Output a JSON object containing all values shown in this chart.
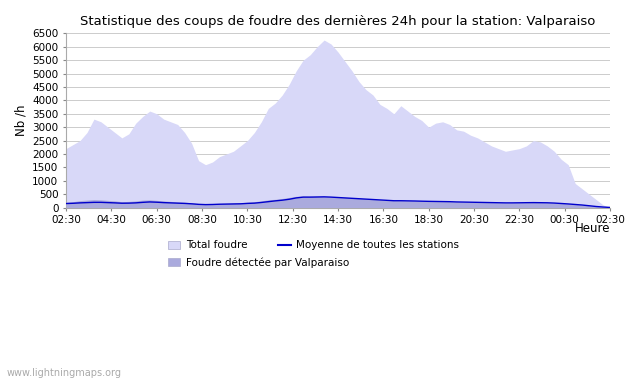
{
  "title": "Statistique des coups de foudre des dernières 24h pour la station: Valparaiso",
  "xlabel": "Heure",
  "ylabel": "Nb /h",
  "ylim": [
    0,
    6500
  ],
  "yticks": [
    0,
    500,
    1000,
    1500,
    2000,
    2500,
    3000,
    3500,
    4000,
    4500,
    5000,
    5500,
    6000,
    6500
  ],
  "xtick_labels": [
    "02:30",
    "04:30",
    "06:30",
    "08:30",
    "10:30",
    "12:30",
    "14:30",
    "16:30",
    "18:30",
    "20:30",
    "22:30",
    "00:30",
    "02:30"
  ],
  "background_color": "#ffffff",
  "plot_bg_color": "#ffffff",
  "grid_color": "#cccccc",
  "total_foudre_color": "#d8d8f8",
  "local_foudre_color": "#aaaadd",
  "moyenne_color": "#0000cc",
  "watermark": "www.lightningmaps.org",
  "total_foudre": [
    2200,
    2350,
    2500,
    2800,
    3300,
    3200,
    3000,
    2800,
    2600,
    2750,
    3150,
    3400,
    3600,
    3500,
    3300,
    3200,
    3100,
    2800,
    2400,
    1750,
    1600,
    1700,
    1900,
    2000,
    2100,
    2300,
    2500,
    2800,
    3200,
    3700,
    3900,
    4200,
    4600,
    5100,
    5500,
    5700,
    6000,
    6250,
    6100,
    5800,
    5450,
    5100,
    4700,
    4400,
    4200,
    3850,
    3700,
    3500,
    3800,
    3600,
    3400,
    3250,
    3000,
    3150,
    3200,
    3100,
    2900,
    2850,
    2700,
    2600,
    2450,
    2300,
    2200,
    2100,
    2150,
    2200,
    2300,
    2500,
    2450,
    2300,
    2100,
    1800,
    1600,
    900,
    700,
    500,
    300,
    100,
    0
  ],
  "local_foudre": [
    200,
    220,
    260,
    280,
    300,
    290,
    270,
    250,
    220,
    230,
    250,
    280,
    290,
    270,
    250,
    230,
    210,
    200,
    180,
    150,
    130,
    140,
    150,
    160,
    170,
    180,
    200,
    220,
    250,
    290,
    310,
    340,
    380,
    420,
    430,
    420,
    415,
    410,
    400,
    390,
    380,
    365,
    350,
    330,
    310,
    295,
    275,
    260,
    260,
    255,
    250,
    245,
    240,
    235,
    230,
    225,
    215,
    210,
    200,
    195,
    190,
    185,
    180,
    175,
    175,
    178,
    182,
    190,
    185,
    180,
    170,
    155,
    140,
    120,
    100,
    70,
    40,
    20,
    0
  ],
  "moyenne": [
    150,
    160,
    175,
    185,
    195,
    195,
    185,
    175,
    162,
    165,
    175,
    195,
    210,
    200,
    185,
    175,
    165,
    155,
    140,
    120,
    110,
    115,
    125,
    130,
    135,
    140,
    155,
    165,
    190,
    220,
    250,
    275,
    310,
    360,
    390,
    390,
    395,
    400,
    390,
    375,
    360,
    345,
    330,
    315,
    300,
    285,
    270,
    255,
    255,
    250,
    245,
    238,
    232,
    228,
    224,
    220,
    210,
    205,
    200,
    195,
    190,
    185,
    180,
    175,
    175,
    178,
    182,
    185,
    182,
    178,
    168,
    152,
    135,
    115,
    95,
    68,
    40,
    20,
    5
  ],
  "n_points": 79
}
